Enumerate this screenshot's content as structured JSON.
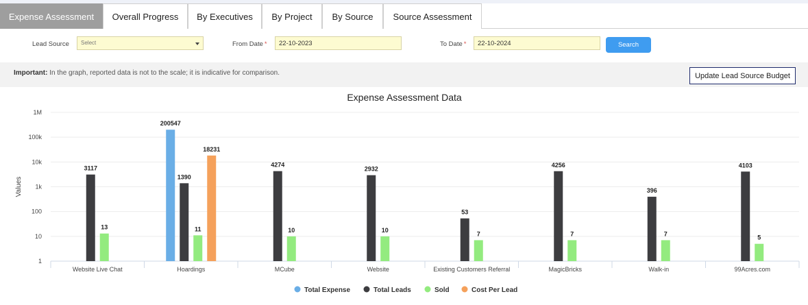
{
  "tabs": [
    {
      "label": "Expense Assessment",
      "active": true
    },
    {
      "label": "Overall Progress",
      "active": false
    },
    {
      "label": "By Executives",
      "active": false
    },
    {
      "label": "By Project",
      "active": false
    },
    {
      "label": "By Source",
      "active": false
    },
    {
      "label": "Source Assessment",
      "active": false
    }
  ],
  "filters": {
    "lead_source_label": "Lead Source",
    "lead_source_value": "Select",
    "from_date_label": "From Date",
    "from_date_value": "22-10-2023",
    "to_date_label": "To Date",
    "to_date_value": "22-10-2024",
    "required_mark": "*",
    "search_label": "Search"
  },
  "notice": {
    "bold": "Important:",
    "text": " In the graph, reported data is not to the scale; it is indicative for comparison.",
    "budget_button": "Update Lead Source Budget"
  },
  "colors": {
    "total_expense": "#6aaee6",
    "total_leads": "#3d3d40",
    "sold": "#93eb7f",
    "cost_per_lead": "#f5a15b",
    "accent": "#3f9cf0"
  },
  "chart_data": {
    "type": "bar",
    "title": "Expense Assessment Data",
    "xlabel": "",
    "ylabel": "Values",
    "scale": "log",
    "ylim": [
      1,
      1000000
    ],
    "ytick_labels": [
      "1",
      "10",
      "100",
      "1k",
      "10k",
      "100k",
      "1M"
    ],
    "grid": true,
    "legend_position": "bottom",
    "categories": [
      "Website Live Chat",
      "Hoardings",
      "MCube",
      "Website",
      "Existing Customers Referral",
      "MagicBricks",
      "Walk-in",
      "99Acres.com"
    ],
    "series": [
      {
        "name": "Total Expense",
        "color_key": "total_expense",
        "values": [
          null,
          200547,
          null,
          null,
          null,
          null,
          null,
          null
        ]
      },
      {
        "name": "Total Leads",
        "color_key": "total_leads",
        "values": [
          3117,
          1390,
          4274,
          2932,
          53,
          4256,
          396,
          4103
        ]
      },
      {
        "name": "Sold",
        "color_key": "sold",
        "values": [
          13,
          11,
          10,
          10,
          7,
          7,
          7,
          5
        ]
      },
      {
        "name": "Cost Per Lead",
        "color_key": "cost_per_lead",
        "values": [
          null,
          18231,
          null,
          null,
          null,
          null,
          null,
          null
        ]
      }
    ]
  }
}
